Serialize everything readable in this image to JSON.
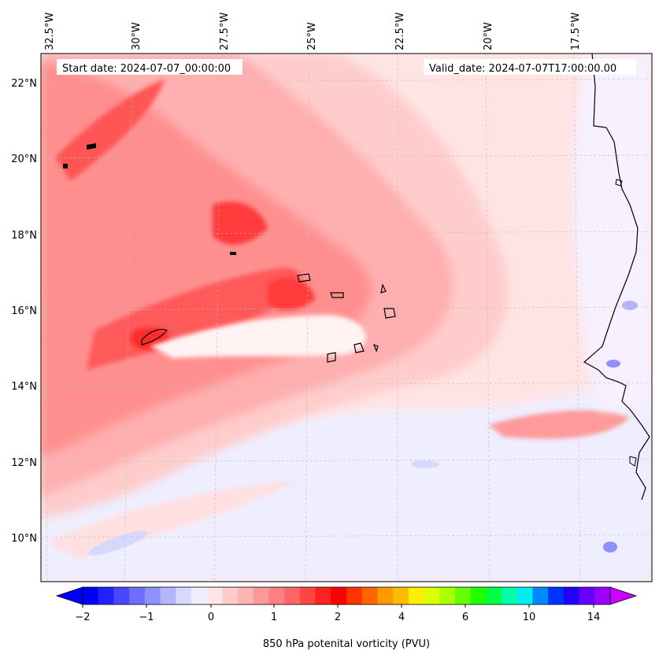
{
  "map": {
    "start_label": "Start date: 2024-07-07_00:00:00",
    "valid_label": "Valid_date: 2024-07-07T17:00:00.00",
    "lon_ticks": [
      "32.5°W",
      "30°W",
      "27.5°W",
      "25°W",
      "22.5°W",
      "20°W",
      "17.5°W"
    ],
    "lat_ticks": [
      "22°N",
      "20°N",
      "18°N",
      "16°N",
      "14°N",
      "12°N",
      "10°N"
    ],
    "extent": {
      "lon_min": -32.5,
      "lon_max": -15.0,
      "lat_min": 8.9,
      "lat_max": 22.8
    },
    "colors": {
      "ocean_base": "#ffe4e4",
      "band_light": "#ffcccc",
      "band_mid": "#ffafaf",
      "band_strong": "#ff8f8f",
      "band_high": "#ff5555",
      "band_max": "#ff2a2a",
      "south_blue": "#eeeeff",
      "coast": "#000000"
    }
  },
  "colorbar": {
    "label": "850 hPa potenital vorticity (PVU)",
    "tick_labels": [
      "−2",
      "−1",
      "0",
      "1",
      "2",
      "4",
      "6",
      "10",
      "14"
    ],
    "colors": [
      "#0000ff",
      "#2222ff",
      "#4848ff",
      "#6d6dff",
      "#9090ff",
      "#b4b4ff",
      "#d8d8ff",
      "#eeeeff",
      "#ffe6e6",
      "#ffcccc",
      "#ffb3b3",
      "#ff9999",
      "#ff8080",
      "#ff6666",
      "#ff4444",
      "#ff2020",
      "#ff0000",
      "#ff3300",
      "#ff6600",
      "#ff9900",
      "#ffbb00",
      "#ffee00",
      "#ddff00",
      "#aaff00",
      "#66ff00",
      "#22ff00",
      "#00ff44",
      "#00ffaa",
      "#00eeee",
      "#0088ff",
      "#0033ff",
      "#2200ff",
      "#6600ff",
      "#9900ff"
    ],
    "extend_low_color": "#0000ff",
    "extend_high_color": "#cc00ff"
  }
}
